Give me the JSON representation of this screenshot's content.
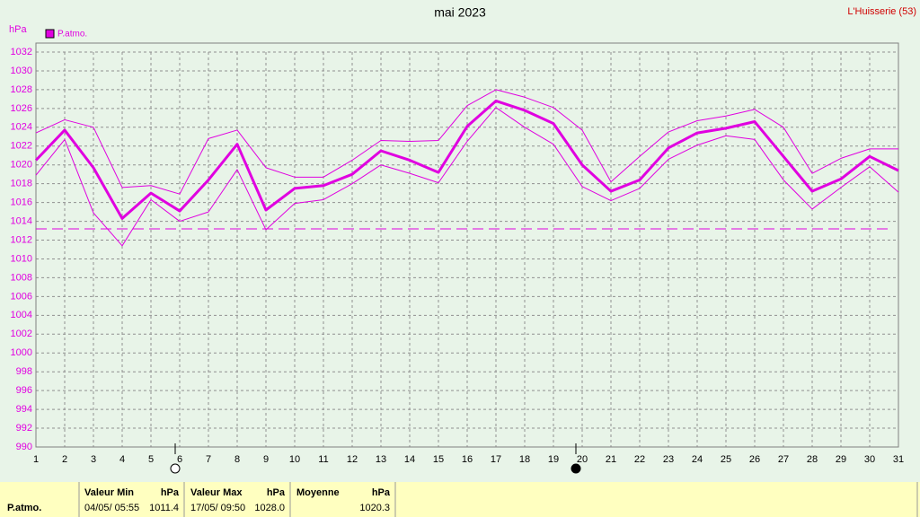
{
  "chart_data": {
    "type": "line",
    "title": "mai 2023",
    "subtitle": "L'Huisserie (53)",
    "ylabel": "hPa",
    "x": [
      1,
      2,
      3,
      4,
      5,
      6,
      7,
      8,
      9,
      10,
      11,
      12,
      13,
      14,
      15,
      16,
      17,
      18,
      19,
      20,
      21,
      22,
      23,
      24,
      25,
      26,
      27,
      28,
      29,
      30,
      31
    ],
    "xlim": [
      1,
      31
    ],
    "xticks": [
      1,
      2,
      3,
      4,
      5,
      6,
      7,
      8,
      9,
      10,
      11,
      12,
      13,
      14,
      15,
      16,
      17,
      18,
      19,
      20,
      21,
      22,
      23,
      24,
      25,
      26,
      27,
      28,
      29,
      30,
      31
    ],
    "ylim": [
      990,
      1032
    ],
    "yticks": [
      990,
      992,
      994,
      996,
      998,
      1000,
      1002,
      1004,
      1006,
      1008,
      1010,
      1012,
      1014,
      1016,
      1018,
      1020,
      1022,
      1024,
      1026,
      1028,
      1030,
      1032
    ],
    "grid": true,
    "reference_line": 1013.2,
    "color": "#e000e0",
    "series": [
      {
        "name": "P.atmo.",
        "color": "#e000e0",
        "width": 3,
        "values": [
          1020.5,
          1023.7,
          1019.7,
          1014.3,
          1017.0,
          1015.1,
          1018.4,
          1022.2,
          1015.2,
          1017.5,
          1017.8,
          1019.0,
          1021.5,
          1020.5,
          1019.2,
          1024.1,
          1026.8,
          1025.8,
          1024.4,
          1020.0,
          1017.2,
          1018.4,
          1021.8,
          1023.4,
          1023.9,
          1024.6,
          1020.9,
          1017.2,
          1018.5,
          1020.9,
          1019.4
        ]
      },
      {
        "color": "#e000e0",
        "width": 1,
        "values": [
          1023.4,
          1024.8,
          1024.0,
          1017.6,
          1017.8,
          1016.9,
          1022.8,
          1023.7,
          1019.7,
          1018.7,
          1018.7,
          1020.5,
          1022.6,
          1022.5,
          1022.6,
          1026.3,
          1028.0,
          1027.2,
          1026.1,
          1023.7,
          1018.2,
          1020.9,
          1023.5,
          1024.7,
          1025.2,
          1025.9,
          1024.0,
          1019.1,
          1020.7,
          1021.7,
          1021.7
        ]
      },
      {
        "color": "#e000e0",
        "width": 1,
        "values": [
          1018.9,
          1022.7,
          1014.9,
          1011.4,
          1016.3,
          1014.0,
          1015.0,
          1019.5,
          1013.1,
          1015.9,
          1016.3,
          1018.0,
          1020.0,
          1019.1,
          1018.1,
          1022.5,
          1026.1,
          1024.0,
          1022.2,
          1017.7,
          1016.2,
          1017.5,
          1020.6,
          1022.1,
          1023.1,
          1022.7,
          1018.4,
          1015.3,
          1017.6,
          1019.8,
          1017.1
        ]
      }
    ]
  },
  "table": {
    "row_label": "P.atmo.",
    "columns": [
      {
        "title": "Valeur Min",
        "unit": "hPa",
        "date": "04/05/ 05:55",
        "value": "1011.4"
      },
      {
        "title": "Valeur Max",
        "unit": "hPa",
        "date": "17/05/ 09:50",
        "value": "1028.0"
      },
      {
        "title": "Moyenne",
        "unit": "hPa",
        "value": "1020.3"
      }
    ]
  }
}
